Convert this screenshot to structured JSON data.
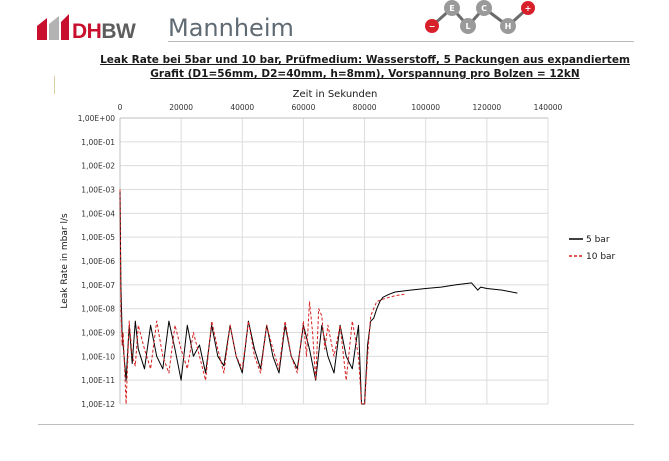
{
  "header": {
    "logo_text_1": "DH",
    "logo_text_2": "BW",
    "site_name": "Mannheim",
    "chain_atoms": [
      {
        "label": "−",
        "color": "#d8202a"
      },
      {
        "label": "E",
        "color": "#9a9a9a"
      },
      {
        "label": "L",
        "color": "#9a9a9a"
      },
      {
        "label": "C",
        "color": "#9a9a9a"
      },
      {
        "label": "H",
        "color": "#9a9a9a"
      },
      {
        "label": "+",
        "color": "#d8202a"
      }
    ]
  },
  "title_line1": "Leak Rate bei 5bar und 10 bar, Prüfmedium: Wasserstoff, 5 Packungen aus expandiertem",
  "title_line2": "Grafit (D1=56mm, D2=40mm, h=8mm), Vorspannung pro Bolzen = 12kN",
  "chart_data": {
    "type": "line",
    "title": "Leak Rate bei 5bar und 10 bar, Prüfmedium: Wasserstoff, 5 Packungen aus expandiertem Grafit (D1=56mm, D2=40mm, h=8mm), Vorspannung pro Bolzen = 12kN",
    "xlabel": "Zeit in Sekunden",
    "ylabel": "Leak Rate in mbar l/s",
    "x_axis_position": "top",
    "xlim": [
      0,
      140000
    ],
    "ylim": [
      1e-12,
      1
    ],
    "y_scale": "log",
    "grid": true,
    "legend_position": "right",
    "x_ticks": [
      "0",
      "20000",
      "40000",
      "60000",
      "80000",
      "100000",
      "120000",
      "140000"
    ],
    "y_ticks": [
      "1,00E+00",
      "1,00E-01",
      "1,00E-02",
      "1,00E-03",
      "1,00E-04",
      "1,00E-05",
      "1,00E-06",
      "1,00E-07",
      "1,00E-08",
      "1,00E-09",
      "1,00E-10",
      "1,00E-11",
      "1,00E-12"
    ],
    "series": [
      {
        "name": "5 bar",
        "color": "#000000",
        "dash": "solid",
        "x": [
          0,
          300,
          700,
          1000,
          2000,
          3000,
          4000,
          5000,
          6000,
          8000,
          10000,
          12000,
          14000,
          16000,
          18000,
          20000,
          22000,
          24000,
          26000,
          28000,
          30000,
          32000,
          34000,
          36000,
          38000,
          40000,
          42000,
          44000,
          46000,
          48000,
          50000,
          52000,
          54000,
          56000,
          58000,
          60000,
          62000,
          64000,
          66000,
          68000,
          70000,
          72000,
          74000,
          76000,
          78000,
          79000,
          80000,
          81000,
          82000,
          83000,
          84000,
          85000,
          86000,
          88000,
          90000,
          95000,
          100000,
          105000,
          110000,
          115000,
          117000,
          118000,
          120000,
          125000,
          130000
        ],
        "y": [
          0.001,
          1e-07,
          1e-09,
          3e-10,
          1e-11,
          2e-09,
          5e-11,
          3e-09,
          2e-10,
          3e-11,
          2e-09,
          1e-10,
          3e-11,
          3e-09,
          2e-10,
          1e-11,
          2e-09,
          1e-10,
          3e-10,
          2e-11,
          2e-09,
          1e-10,
          4e-11,
          2e-09,
          1e-10,
          2e-11,
          3e-09,
          2e-10,
          3e-11,
          2e-09,
          1e-10,
          2e-11,
          2e-09,
          1e-10,
          3e-11,
          2e-09,
          2e-10,
          1e-11,
          2e-09,
          1e-10,
          2e-11,
          2e-09,
          1e-10,
          3e-11,
          2e-09,
          1e-12,
          1e-12,
          3e-10,
          3e-09,
          4e-09,
          1e-08,
          2e-08,
          3e-08,
          4e-08,
          5e-08,
          6e-08,
          7e-08,
          8e-08,
          1e-07,
          1.2e-07,
          6e-08,
          8e-08,
          7e-08,
          6e-08,
          4.5e-08
        ]
      },
      {
        "name": "10 bar",
        "color": "#d62020",
        "dash": "dashed",
        "x": [
          0,
          300,
          700,
          1000,
          2000,
          3000,
          4000,
          5000,
          6000,
          8000,
          10000,
          12000,
          14000,
          16000,
          18000,
          20000,
          22000,
          24000,
          26000,
          28000,
          30000,
          32000,
          34000,
          36000,
          38000,
          40000,
          42000,
          44000,
          46000,
          48000,
          50000,
          52000,
          54000,
          56000,
          58000,
          60000,
          61000,
          62000,
          63000,
          64000,
          65000,
          66000,
          67000,
          68000,
          70000,
          72000,
          74000,
          76000,
          78000,
          79000,
          80000,
          81000,
          82000,
          83000,
          84000,
          86000,
          88000,
          90000,
          93000
        ],
        "y": [
          0.001,
          1e-08,
          3e-10,
          1e-09,
          1e-12,
          3e-09,
          1e-10,
          4e-11,
          2e-09,
          2e-10,
          3e-11,
          3e-09,
          1e-10,
          2e-11,
          2e-09,
          2e-10,
          3e-11,
          1e-09,
          1e-10,
          1e-11,
          3e-09,
          2e-10,
          2e-11,
          2e-09,
          1e-10,
          3e-11,
          3e-09,
          1e-10,
          2e-11,
          2e-09,
          2e-10,
          3e-11,
          3e-09,
          1e-10,
          2e-11,
          3e-09,
          1e-10,
          2e-08,
          1e-09,
          1e-11,
          1e-08,
          5e-09,
          2e-10,
          2e-09,
          1e-10,
          2e-09,
          1e-11,
          3e-09,
          1e-10,
          1e-12,
          1e-12,
          1e-10,
          5e-09,
          1e-08,
          2e-08,
          2.5e-08,
          3e-08,
          3.5e-08,
          4e-08
        ]
      }
    ]
  }
}
